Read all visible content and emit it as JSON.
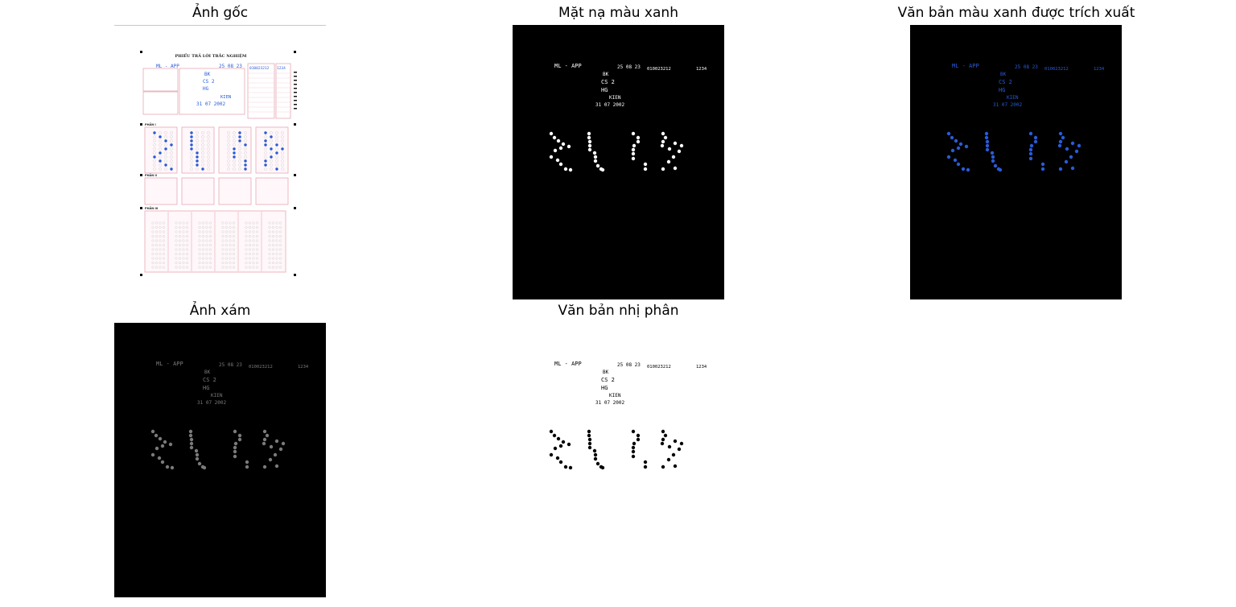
{
  "window": {
    "title": ""
  },
  "panels": [
    {
      "id": "original",
      "title": "Ảnh gốc",
      "background": "#ffffff"
    },
    {
      "id": "blue-mask",
      "title": "Mặt nạ màu xanh",
      "background": "#000000"
    },
    {
      "id": "blue-text",
      "title": "Văn bản màu xanh được trích xuất",
      "background": "#000000"
    },
    {
      "id": "grayscale",
      "title": "Ảnh xám",
      "background": "#000000"
    },
    {
      "id": "binary",
      "title": "Văn bản nhị phân",
      "background": "#ffffff"
    }
  ],
  "sheet": {
    "heading": "PHIẾU TRẢ LỜI TRẮC NGHIỆM",
    "section_1": "PHẦN I",
    "section_2": "PHẦN II",
    "section_3": "PHẦN III",
    "fields": {
      "exam_code": "ML - APP",
      "date_short": "25 08 23",
      "id_number": "010023212",
      "code": "1234",
      "field_1": "BK",
      "field_2": "CS 2",
      "field_3": "HG",
      "field_4": "KIEN",
      "dob": "31 07 2002"
    }
  },
  "colors": {
    "blue_ink": "#2a5bd7",
    "mask_white": "#ffffff",
    "gray": "#7a7a7a",
    "pink_border": "#e6a7b5"
  }
}
